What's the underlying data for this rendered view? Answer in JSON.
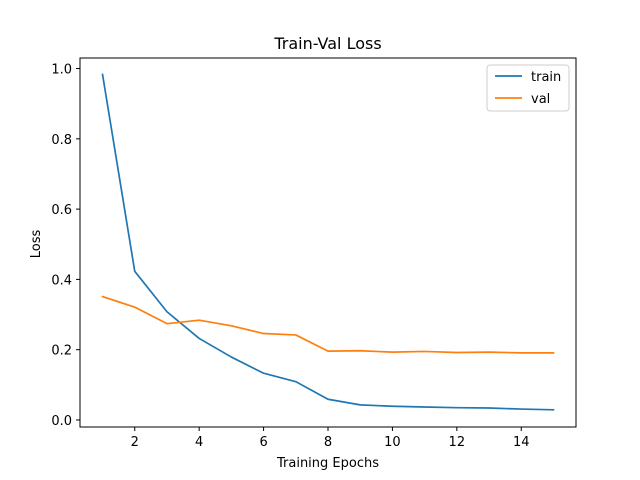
{
  "chart_data": {
    "type": "line",
    "title": "Train-Val Loss",
    "xlabel": "Training Epochs",
    "ylabel": "Loss",
    "xlim": [
      0.3,
      15.7
    ],
    "ylim": [
      -0.02,
      1.03
    ],
    "xticks": [
      2,
      4,
      6,
      8,
      10,
      12,
      14
    ],
    "xtick_labels": [
      "2",
      "4",
      "6",
      "8",
      "10",
      "12",
      "14"
    ],
    "yticks": [
      0.0,
      0.2,
      0.4,
      0.6,
      0.8,
      1.0
    ],
    "ytick_labels": [
      "0.0",
      "0.2",
      "0.4",
      "0.6",
      "0.8",
      "1.0"
    ],
    "grid": false,
    "legend_position": "top-right",
    "x": [
      1,
      2,
      3,
      4,
      5,
      6,
      7,
      8,
      9,
      10,
      11,
      12,
      13,
      14,
      15
    ],
    "series": [
      {
        "name": "train",
        "color": "#1f77b4",
        "values": [
          0.983,
          0.423,
          0.308,
          0.232,
          0.179,
          0.133,
          0.109,
          0.059,
          0.043,
          0.039,
          0.037,
          0.035,
          0.034,
          0.031,
          0.029
        ]
      },
      {
        "name": "val",
        "color": "#ff7f0e",
        "values": [
          0.351,
          0.321,
          0.274,
          0.284,
          0.268,
          0.246,
          0.242,
          0.196,
          0.197,
          0.193,
          0.195,
          0.192,
          0.193,
          0.191,
          0.191
        ]
      }
    ]
  }
}
